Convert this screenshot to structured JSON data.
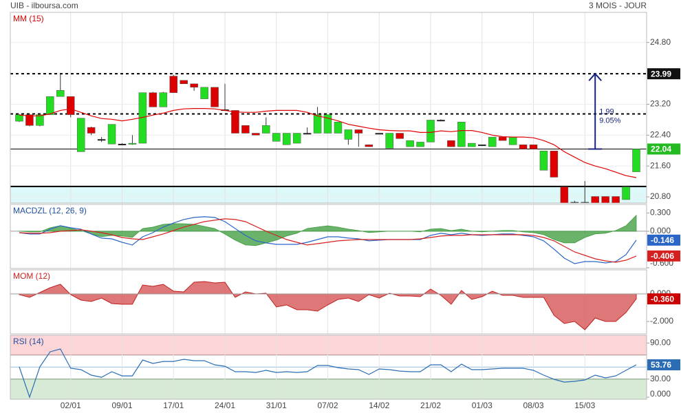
{
  "header": {
    "title": "UIB - ilboursa.com",
    "period": "3 MOIS - JOUR"
  },
  "chart_data": [
    {
      "type": "candlestick",
      "title": "MM (15)",
      "title_color": "#e00000",
      "categories": [
        null,
        null,
        null,
        null,
        null,
        "02/01",
        null,
        null,
        null,
        null,
        "09/01",
        null,
        null,
        null,
        null,
        "17/01",
        null,
        null,
        null,
        null,
        "24/01",
        null,
        null,
        null,
        null,
        "31/01",
        null,
        null,
        null,
        null,
        "07/02",
        null,
        null,
        null,
        null,
        "14/02",
        null,
        null,
        null,
        null,
        "21/02",
        null,
        null,
        null,
        null,
        "01/03",
        null,
        null,
        null,
        null,
        "08/03",
        null,
        null,
        null,
        null,
        "15/03",
        null,
        null,
        null,
        null,
        null
      ],
      "open": [
        22.76,
        22.93,
        22.65,
        22.93,
        23.4,
        23.4,
        21.97,
        22.6,
        22.29,
        22.17,
        22.17,
        22.17,
        22.19,
        23.5,
        23.13,
        23.93,
        23.82,
        23.73,
        23.34,
        23.64,
        23.06,
        23.04,
        22.65,
        22.45,
        22.45,
        22.24,
        22.15,
        22.19,
        22.45,
        22.45,
        22.45,
        22.45,
        22.29,
        22.54,
        22.15,
        22.45,
        22.06,
        22.45,
        22.1,
        22.1,
        22.22,
        22.79,
        22.26,
        22.1,
        22.1,
        22.15,
        22.1,
        22.35,
        22.15,
        22.15,
        22.15,
        21.49,
        21.99,
        21.06,
        20.66,
        20.66,
        20.81,
        20.81,
        20.81,
        20.73,
        21.45
      ],
      "high": [
        22.95,
        22.95,
        22.95,
        23.4,
        23.99,
        23.4,
        22.84,
        22.62,
        22.35,
        22.68,
        22.19,
        22.4,
        23.5,
        23.52,
        23.52,
        23.96,
        23.82,
        23.73,
        23.64,
        23.64,
        23.73,
        23.04,
        22.65,
        22.45,
        22.86,
        22.45,
        22.45,
        22.45,
        22.6,
        23.13,
        22.93,
        22.74,
        22.54,
        22.54,
        22.15,
        22.45,
        22.45,
        22.45,
        22.26,
        22.22,
        22.79,
        22.81,
        22.26,
        22.74,
        22.19,
        22.15,
        22.35,
        22.35,
        22.35,
        22.15,
        22.15,
        21.99,
        21.99,
        21.06,
        20.7,
        21.21,
        20.81,
        20.81,
        20.81,
        21.06,
        22.04
      ],
      "low": [
        22.74,
        22.63,
        22.63,
        22.93,
        23.4,
        22.86,
        21.97,
        22.4,
        22.22,
        22.17,
        22.15,
        22.15,
        22.19,
        23.13,
        23.13,
        23.5,
        23.73,
        23.55,
        23.34,
        23.13,
        23.04,
        22.45,
        22.45,
        22.4,
        22.45,
        22.24,
        22.15,
        22.19,
        22.45,
        22.45,
        22.45,
        22.45,
        22.15,
        22.1,
        22.1,
        22.45,
        22.06,
        22.31,
        22.1,
        22.1,
        22.22,
        22.79,
        22.1,
        22.1,
        22.1,
        22.15,
        22.1,
        22.26,
        22.15,
        22.04,
        22.04,
        21.49,
        21.31,
        20.5,
        20.6,
        20.6,
        20.6,
        20.6,
        20.6,
        20.73,
        21.45
      ],
      "close": [
        22.93,
        22.65,
        22.93,
        23.4,
        23.56,
        22.93,
        22.84,
        22.45,
        22.29,
        22.68,
        22.17,
        22.19,
        23.5,
        23.13,
        23.5,
        23.5,
        23.73,
        23.64,
        23.64,
        23.13,
        23.06,
        22.45,
        22.45,
        22.4,
        22.65,
        22.45,
        22.45,
        22.45,
        22.45,
        22.93,
        22.93,
        22.74,
        22.54,
        22.45,
        22.1,
        22.45,
        22.45,
        22.31,
        22.26,
        22.22,
        22.79,
        22.79,
        22.1,
        22.74,
        22.19,
        22.15,
        22.35,
        22.26,
        22.35,
        22.04,
        22.04,
        21.99,
        21.31,
        20.5,
        20.66,
        20.66,
        20.6,
        20.6,
        20.6,
        21.06,
        22.04
      ],
      "up_color": "#22dd22",
      "down_color": "#dd0000",
      "doji_color": "#222222",
      "series": [
        {
          "color": "#e00000",
          "values": [
            22.92,
            22.9,
            22.9,
            22.95,
            23.04,
            23.08,
            22.99,
            22.9,
            22.83,
            22.81,
            22.77,
            22.81,
            22.86,
            22.92,
            22.97,
            23.04,
            23.08,
            23.09,
            23.09,
            23.08,
            23.04,
            23.0,
            22.99,
            22.99,
            23.02,
            23.04,
            23.04,
            23.04,
            22.99,
            22.9,
            22.84,
            22.77,
            22.68,
            22.63,
            22.58,
            22.54,
            22.52,
            22.51,
            22.51,
            22.47,
            22.47,
            22.51,
            22.49,
            22.52,
            22.52,
            22.47,
            22.4,
            22.36,
            22.35,
            22.35,
            22.33,
            22.26,
            22.15,
            21.97,
            21.83,
            21.69,
            21.6,
            21.53,
            21.44,
            21.35,
            21.3
          ]
        }
      ],
      "ylim": [
        20.64,
        25.58
      ],
      "yticks": [
        {
          "value": 24.8,
          "label": "24.80"
        },
        {
          "value": 23.2,
          "label": "23.20"
        },
        {
          "value": 22.4,
          "label": "22.40"
        },
        {
          "value": 21.6,
          "label": "21.60"
        },
        {
          "value": 20.8,
          "label": "20.80"
        }
      ],
      "grid": true,
      "dashed_levels": [
        23.99,
        22.95
      ],
      "solid_levels": [
        22.04,
        21.07
      ],
      "band": [
        20.64,
        21.07
      ],
      "band_color": "#dcf8f8",
      "resistance_tag_color": "#111111",
      "last_tag_color": "#22bb22",
      "change": 1.99,
      "change_pct": {
        "value": 9.05,
        "label": "9.05%"
      },
      "arrow_color": "#1a237e"
    },
    {
      "type": "line",
      "title": "MACDZL (12, 26, 9)",
      "title_color": "#1f4fa0",
      "series": [
        {
          "style": "area",
          "color": "#3a9a3a",
          "values": [
            0.0,
            -0.011,
            -0.011,
            0.057,
            0.091,
            0.046,
            0.011,
            -0.045,
            -0.09,
            -0.068,
            -0.079,
            -0.101,
            0.045,
            0.068,
            0.113,
            0.125,
            0.124,
            0.113,
            0.08,
            0.045,
            -0.046,
            -0.147,
            -0.226,
            -0.237,
            -0.192,
            -0.147,
            -0.079,
            -0.034,
            0.045,
            0.068,
            0.09,
            0.067,
            0.034,
            0.011,
            -0.022,
            -0.011,
            0.0,
            0.0,
            0.0,
            -0.011,
            0.034,
            0.045,
            0.011,
            0.034,
            0.0,
            -0.011,
            0.0,
            0.012,
            0.012,
            -0.011,
            -0.023,
            -0.056,
            -0.136,
            -0.192,
            -0.192,
            -0.102,
            -0.045,
            -0.034,
            0.011,
            0.09,
            0.26
          ]
        },
        {
          "style": "line",
          "color": "#2a66c8",
          "tag": true,
          "values": [
            -0.023,
            -0.045,
            -0.045,
            0.034,
            0.091,
            0.057,
            0.034,
            -0.045,
            -0.113,
            -0.125,
            -0.181,
            -0.226,
            -0.091,
            -0.023,
            0.068,
            0.136,
            0.192,
            0.226,
            0.238,
            0.226,
            0.158,
            0.045,
            -0.068,
            -0.158,
            -0.192,
            -0.215,
            -0.215,
            -0.215,
            -0.181,
            -0.136,
            -0.091,
            -0.091,
            -0.113,
            -0.125,
            -0.158,
            -0.147,
            -0.136,
            -0.136,
            -0.136,
            -0.136,
            -0.068,
            -0.034,
            -0.057,
            -0.034,
            -0.057,
            -0.068,
            -0.057,
            -0.045,
            -0.045,
            -0.068,
            -0.091,
            -0.158,
            -0.294,
            -0.441,
            -0.532,
            -0.498,
            -0.498,
            -0.521,
            -0.498,
            -0.385,
            -0.146
          ]
        },
        {
          "style": "line",
          "color": "#d62020",
          "tag": true,
          "values": [
            -0.023,
            -0.034,
            -0.034,
            -0.023,
            0.0,
            0.011,
            0.023,
            0.0,
            -0.023,
            -0.057,
            -0.102,
            -0.125,
            -0.136,
            -0.091,
            -0.045,
            0.011,
            0.068,
            0.113,
            0.158,
            0.181,
            0.204,
            0.192,
            0.158,
            0.079,
            0.0,
            -0.068,
            -0.136,
            -0.181,
            -0.226,
            -0.204,
            -0.181,
            -0.158,
            -0.147,
            -0.136,
            -0.136,
            -0.136,
            -0.136,
            -0.136,
            -0.136,
            -0.125,
            -0.102,
            -0.079,
            -0.068,
            -0.068,
            -0.057,
            -0.057,
            -0.057,
            -0.057,
            -0.057,
            -0.057,
            -0.068,
            -0.102,
            -0.158,
            -0.249,
            -0.34,
            -0.396,
            -0.453,
            -0.487,
            -0.509,
            -0.475,
            -0.406
          ]
        }
      ],
      "ylim": [
        -0.611,
        0.44
      ],
      "yticks": [
        {
          "value": 0.3,
          "label": "0.300"
        },
        {
          "value": 0,
          "label": "0.000"
        },
        {
          "value": -0.6,
          "label": "-0.600"
        }
      ],
      "zero_line": true
    },
    {
      "type": "area",
      "title": "MOM (12)",
      "title_color": "#cc2222",
      "color": "#d86060",
      "line_color": "#c02020",
      "values": [
        -0.05,
        -0.25,
        0.1,
        0.45,
        0.7,
        -0.05,
        -0.45,
        -0.55,
        -0.3,
        -0.7,
        -0.75,
        -0.75,
        0.65,
        0.55,
        0.7,
        0.2,
        0.15,
        0.85,
        0.9,
        0.8,
        0.85,
        -0.25,
        0.15,
        0.0,
        0.05,
        -0.95,
        -0.8,
        -1.15,
        -1.15,
        -1.25,
        -0.8,
        -0.4,
        -0.3,
        -0.55,
        -0.05,
        -0.3,
        0.05,
        -0.15,
        -0.15,
        -0.2,
        0.35,
        -0.1,
        -0.75,
        0.25,
        -0.4,
        -0.2,
        0.2,
        -0.1,
        -0.1,
        -0.25,
        -0.25,
        -0.25,
        -1.55,
        -2.15,
        -2.0,
        -2.6,
        -1.75,
        -2.0,
        -2.0,
        -1.35,
        -0.36
      ],
      "tag": {
        "value": -0.36,
        "label": "-0.360",
        "color": "#cc0000"
      },
      "ylim": [
        -2.9,
        1.75
      ],
      "yticks": [
        {
          "value": 0,
          "label": "0.000"
        },
        {
          "value": -2,
          "label": "-2.000"
        }
      ]
    },
    {
      "type": "line",
      "title": "RSI (14)",
      "title_color": "#1f4fa0",
      "series": [
        {
          "color": "#2a6db5",
          "tag": true,
          "values": [
            50.3,
            0,
            50.3,
            75.4,
            80.0,
            48.0,
            45.7,
            36.6,
            33.1,
            42.3,
            35.4,
            35.4,
            61.7,
            56.0,
            59.4,
            59.4,
            62.9,
            60.6,
            60.6,
            53.7,
            51.4,
            42.3,
            42.3,
            41.1,
            44.6,
            41.1,
            42.3,
            41.1,
            42.3,
            52.6,
            52.6,
            49.1,
            46.9,
            45.7,
            37.7,
            46.9,
            45.7,
            43.4,
            42.3,
            42.3,
            53.7,
            53.7,
            42.3,
            54.9,
            45.7,
            45.7,
            46.9,
            48.0,
            48.0,
            48.0,
            44.6,
            36.6,
            29.7,
            25.1,
            26.3,
            28.6,
            36.6,
            32.0,
            35.4,
            44.6,
            53.76
          ]
        }
      ],
      "ylim": [
        -3.4,
        102.9
      ],
      "yticks": [
        {
          "value": 90,
          "label": "90.00"
        },
        {
          "value": 30,
          "label": "30.00"
        },
        {
          "value": 0,
          "label": "0.000"
        }
      ],
      "upper_band": 70,
      "lower_band": 30,
      "mid_line": 50,
      "upper_color": "#fcd6d6",
      "lower_color": "#d7ead5"
    }
  ]
}
